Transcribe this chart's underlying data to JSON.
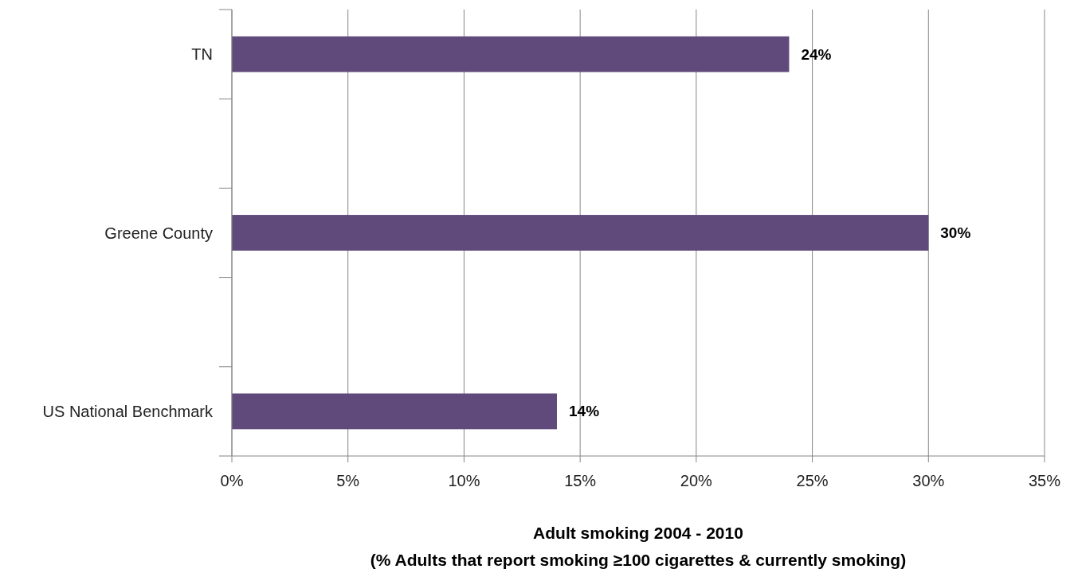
{
  "chart_data": {
    "type": "bar",
    "orientation": "horizontal",
    "categories": [
      "TN",
      null,
      "Greene County",
      null,
      "US National Benchmark"
    ],
    "values": [
      24,
      null,
      30,
      null,
      14
    ],
    "color": "#604a7b",
    "value_labels": [
      "24%",
      null,
      "30%",
      null,
      "14%"
    ],
    "xlim": [
      0,
      35
    ],
    "xticks": [
      {
        "value": 0,
        "label": "0%"
      },
      {
        "value": 5,
        "label": "5%"
      },
      {
        "value": 10,
        "label": "10%"
      },
      {
        "value": 15,
        "label": "15%"
      },
      {
        "value": 20,
        "label": "20%"
      },
      {
        "value": 25,
        "label": "25%"
      },
      {
        "value": 30,
        "label": "30%"
      },
      {
        "value": 35,
        "label": "35%"
      }
    ],
    "xlabel": "Adult smoking 2004 - 2010\n(% Adults that report smoking ≥100 cigarettes & currently smoking)",
    "grid": "x"
  }
}
